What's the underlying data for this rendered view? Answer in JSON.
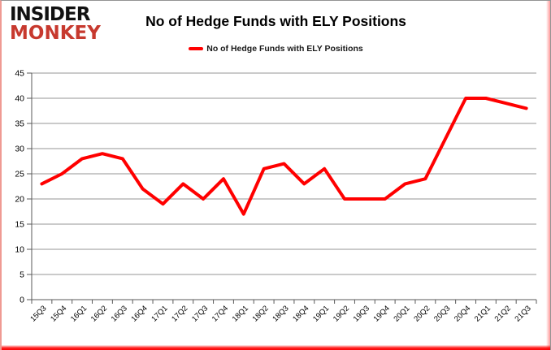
{
  "logo": {
    "line1": "INSIDER",
    "line2": "MONKEY"
  },
  "header": {
    "title": "No of Hedge Funds with ELY Positions"
  },
  "legend": {
    "label": "No of Hedge Funds with ELY Positions",
    "marker_color": "#ff0000"
  },
  "colors": {
    "series_red": "#ff0000",
    "gridline": "#969696",
    "axis": "#595959",
    "label": "#000000",
    "logo_red": "#c7392e",
    "frame_bottom_red": "#fb0003"
  },
  "chart_data": {
    "type": "line",
    "title": "No of Hedge Funds with ELY Positions",
    "xlabel": "",
    "ylabel": "",
    "categories": [
      "15Q3",
      "15Q4",
      "16Q1",
      "16Q2",
      "16Q3",
      "16Q4",
      "17Q1",
      "17Q2",
      "17Q3",
      "17Q4",
      "18Q1",
      "18Q2",
      "18Q3",
      "18Q4",
      "19Q1",
      "19Q2",
      "19Q3",
      "19Q4",
      "20Q1",
      "20Q2",
      "20Q3",
      "20Q4",
      "21Q1",
      "21Q2",
      "21Q3"
    ],
    "series": [
      {
        "name": "No of Hedge Funds with ELY Positions",
        "color": "#ff0000",
        "values": [
          23,
          25,
          28,
          29,
          28,
          22,
          19,
          23,
          20,
          24,
          17,
          26,
          27,
          23,
          26,
          20,
          20,
          20,
          23,
          24,
          32,
          40,
          40,
          39,
          38
        ]
      }
    ],
    "ylim": [
      0,
      45
    ],
    "ytick_step": 5,
    "grid": true,
    "legend_position": "top"
  }
}
